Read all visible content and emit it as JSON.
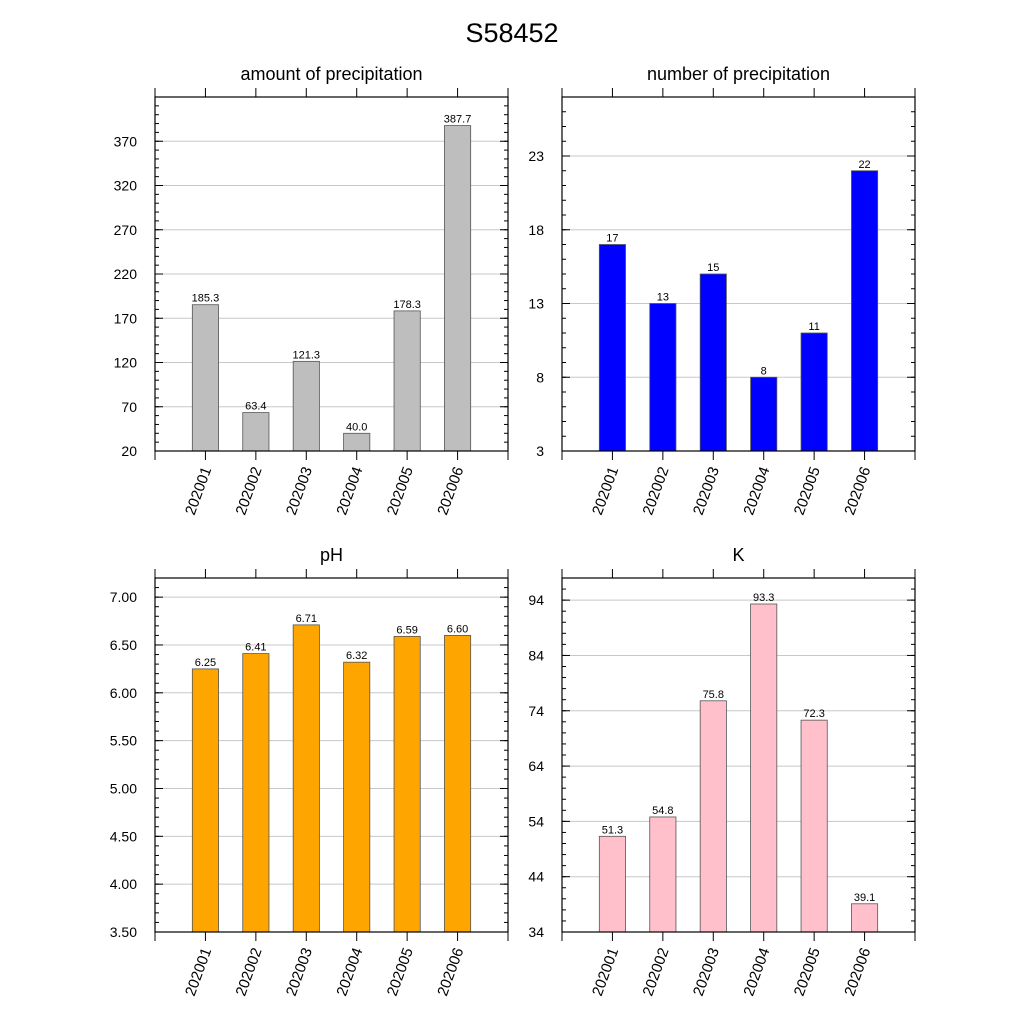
{
  "figure": {
    "title": "S58452"
  },
  "chart_data": [
    {
      "type": "bar",
      "title": "amount of precipitation",
      "categories": [
        "202001",
        "202002",
        "202003",
        "202004",
        "202005",
        "202006"
      ],
      "values": [
        185.3,
        63.4,
        121.3,
        40.0,
        178.3,
        387.7
      ],
      "value_labels": [
        "185.3",
        "63.4",
        "121.3",
        "40.0",
        "178.3",
        "387.7"
      ],
      "ylim": [
        20,
        420
      ],
      "yticks": [
        20,
        70,
        120,
        170,
        220,
        270,
        320,
        370
      ],
      "ytick_labels": [
        "20",
        "70",
        "120",
        "170",
        "220",
        "270",
        "320",
        "370"
      ],
      "grid": true,
      "color": "#bebebe"
    },
    {
      "type": "bar",
      "title": "number of precipitation",
      "categories": [
        "202001",
        "202002",
        "202003",
        "202004",
        "202005",
        "202006"
      ],
      "values": [
        17,
        13,
        15,
        8,
        11,
        22
      ],
      "value_labels": [
        "17",
        "13",
        "15",
        "8",
        "11",
        "22"
      ],
      "ylim": [
        3,
        27
      ],
      "yticks": [
        3,
        8,
        13,
        18,
        23
      ],
      "ytick_labels": [
        "3",
        "8",
        "13",
        "18",
        "23"
      ],
      "grid": true,
      "color": "#0000ff"
    },
    {
      "type": "bar",
      "title": "pH",
      "categories": [
        "202001",
        "202002",
        "202003",
        "202004",
        "202005",
        "202006"
      ],
      "values": [
        6.25,
        6.41,
        6.71,
        6.32,
        6.59,
        6.6
      ],
      "value_labels": [
        "6.25",
        "6.41",
        "6.71",
        "6.32",
        "6.59",
        "6.60"
      ],
      "ylim": [
        3.5,
        7.2
      ],
      "yticks": [
        3.5,
        4.0,
        4.5,
        5.0,
        5.5,
        6.0,
        6.5,
        7.0
      ],
      "ytick_labels": [
        "3.50",
        "4.00",
        "4.50",
        "5.00",
        "5.50",
        "6.00",
        "6.50",
        "7.00"
      ],
      "grid": true,
      "color": "#ffa500"
    },
    {
      "type": "bar",
      "title": "K",
      "categories": [
        "202001",
        "202002",
        "202003",
        "202004",
        "202005",
        "202006"
      ],
      "values": [
        51.3,
        54.8,
        75.8,
        93.3,
        72.3,
        39.1
      ],
      "value_labels": [
        "51.3",
        "54.8",
        "75.8",
        "93.3",
        "72.3",
        "39.1"
      ],
      "ylim": [
        34,
        98
      ],
      "yticks": [
        34,
        44,
        54,
        64,
        74,
        84,
        94
      ],
      "ytick_labels": [
        "34",
        "44",
        "54",
        "64",
        "74",
        "84",
        "94"
      ],
      "grid": true,
      "color": "#ffc0cb"
    }
  ]
}
